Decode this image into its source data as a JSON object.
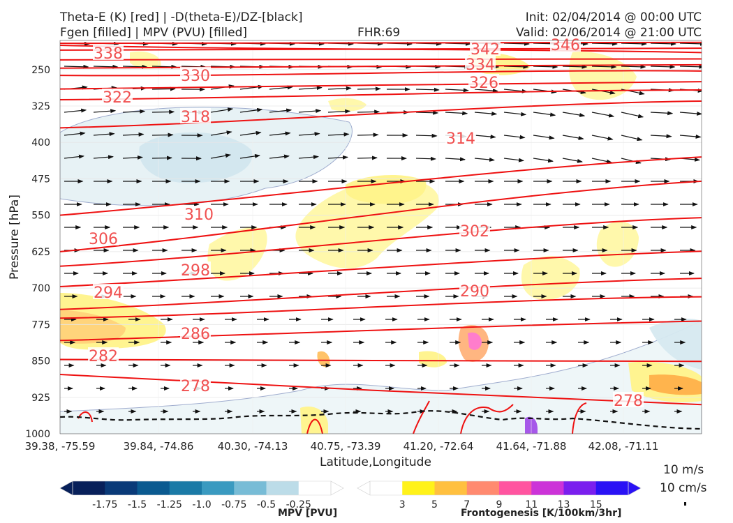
{
  "header": {
    "line1_left": "Theta-E (K) [red] | -D(theta-E)/DZ-[black]",
    "line2_left": "Fgen [filled] | MPV (PVU) [filled]",
    "fhr": "FHR:69",
    "init": "Init: 02/04/2014 @ 00:00 UTC",
    "valid": "Valid: 02/06/2014 @ 21:00 UTC"
  },
  "chart_data": {
    "type": "cross-section",
    "xlabel": "Latitude,Longitude",
    "ylabel": "Pressure [hPa]",
    "x_ticks": [
      "39.38, -75.59",
      "39.84, -74.86",
      "40.30, -74.13",
      "40.75, -73.39",
      "41.20, -72.64",
      "41.64, -71.88",
      "42.08, -71.11"
    ],
    "y_ticks": [
      250,
      325,
      400,
      475,
      550,
      625,
      700,
      775,
      850,
      925,
      1000
    ],
    "ylim": [
      1000,
      190
    ],
    "theta_e_contours": [
      {
        "label": "338",
        "y_left": 210,
        "y_right": 206
      },
      {
        "label": "346",
        "y_left": 196,
        "y_right": 194
      },
      {
        "label": "342",
        "y_left": 200,
        "y_right": 215
      },
      {
        "label": "334",
        "y_left": 230,
        "y_right": 228
      },
      {
        "label": "330",
        "y_left": 247,
        "y_right": 240
      },
      {
        "label": "326",
        "y_left": 262,
        "y_right": 253
      },
      {
        "label": "322",
        "y_left": 290,
        "y_right": 275
      },
      {
        "label": "318",
        "y_left": 312,
        "y_right": 292
      },
      {
        "label": "314",
        "y_left": 370,
        "y_right": 315
      },
      {
        "label": "310",
        "y_left": 550,
        "y_right": 430
      },
      {
        "label": "306",
        "y_left": 625,
        "y_right": 480
      },
      {
        "label": "302",
        "y_left": 655,
        "y_right": 555
      },
      {
        "label": "298",
        "y_left": 697,
        "y_right": 624
      },
      {
        "label": "294",
        "y_left": 744,
        "y_right": 680
      },
      {
        "label": "290",
        "y_left": 762,
        "y_right": 718
      },
      {
        "label": "286",
        "y_left": 808,
        "y_right": 768
      },
      {
        "label": "282",
        "y_left": 847,
        "y_right": 851
      },
      {
        "label": "278",
        "y_left": 878,
        "y_right": 940
      }
    ],
    "contour_labels_shown": [
      "338",
      "342",
      "346",
      "334",
      "330",
      "326",
      "322",
      "318",
      "314",
      "310",
      "306",
      "302",
      "298",
      "294",
      "290",
      "286",
      "282",
      "278",
      "278"
    ],
    "mpv_colorbar": {
      "label": "MPV [PVU]",
      "ticks": [
        "-1.75",
        "-1.5",
        "-1.25",
        "-1.0",
        "-0.75",
        "-0.5",
        "-0.25"
      ],
      "colors": [
        "#08205a",
        "#0a3a78",
        "#0b5a90",
        "#1b7aa6",
        "#3a9ac0",
        "#78bcd6",
        "#bcdce8",
        "#ffffff"
      ]
    },
    "fgen_colorbar": {
      "label": "Frontogenesis [K/100km/3hr]",
      "ticks": [
        "3",
        "5",
        "7",
        "9",
        "11",
        "13",
        "15"
      ],
      "colors": [
        "#ffffff",
        "#fff21a",
        "#ffc040",
        "#ff8a70",
        "#ff55a0",
        "#cc33d8",
        "#7a1fee",
        "#2a12f5"
      ]
    },
    "vector_scale": [
      "10 m/s",
      "10 cm/s"
    ]
  }
}
